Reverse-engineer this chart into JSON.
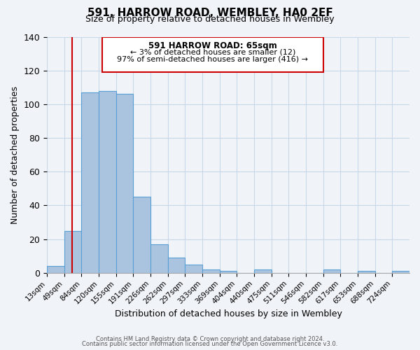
{
  "title": "591, HARROW ROAD, WEMBLEY, HA0 2EF",
  "subtitle": "Size of property relative to detached houses in Wembley",
  "xlabel": "Distribution of detached houses by size in Wembley",
  "ylabel": "Number of detached properties",
  "bin_labels": [
    "13sqm",
    "49sqm",
    "84sqm",
    "120sqm",
    "155sqm",
    "191sqm",
    "226sqm",
    "262sqm",
    "297sqm",
    "333sqm",
    "369sqm",
    "404sqm",
    "440sqm",
    "475sqm",
    "511sqm",
    "546sqm",
    "582sqm",
    "617sqm",
    "653sqm",
    "688sqm",
    "724sqm"
  ],
  "bar_heights": [
    4,
    25,
    107,
    108,
    106,
    45,
    17,
    9,
    5,
    2,
    1,
    0,
    2,
    0,
    0,
    0,
    2,
    0,
    1,
    0,
    1
  ],
  "bar_color": "#aac4e0",
  "bar_edge_color": "#5a9fd4",
  "ylim": [
    0,
    140
  ],
  "yticks": [
    0,
    20,
    40,
    60,
    80,
    100,
    120,
    140
  ],
  "marker_label": "591 HARROW ROAD: 65sqm",
  "annotation_line1": "← 3% of detached houses are smaller (12)",
  "annotation_line2": "97% of semi-detached houses are larger (416) →",
  "footer_line1": "Contains HM Land Registry data © Crown copyright and database right 2024.",
  "footer_line2": "Contains public sector information licensed under the Open Government Licence v3.0.",
  "background_color": "#f0f4f8",
  "red_line_color": "#cc0000",
  "annotation_box_edge": "#cc0000"
}
